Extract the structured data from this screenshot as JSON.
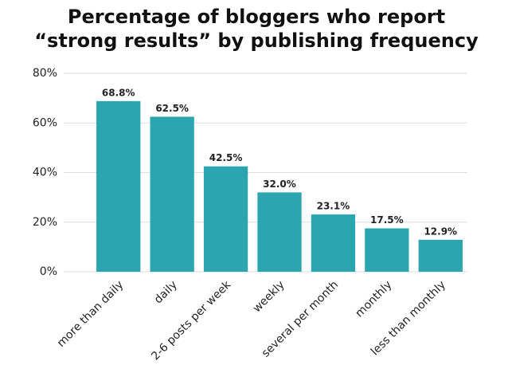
{
  "chart_data": {
    "type": "bar",
    "title": [
      "Percentage of bloggers who report",
      "“strong results” by publishing frequency"
    ],
    "categories": [
      "more than daily",
      "daily",
      "2-6 posts per week",
      "weekly",
      "several per month",
      "monthly",
      "less than monthly"
    ],
    "values": [
      68.8,
      62.5,
      42.5,
      32.0,
      23.1,
      17.5,
      12.9
    ],
    "value_labels": [
      "68.8%",
      "62.5%",
      "42.5%",
      "32.0%",
      "23.1%",
      "17.5%",
      "12.9%"
    ],
    "color": "#2ba6b0",
    "ylim": [
      0,
      80
    ],
    "yticks": [
      {
        "value": 0,
        "label": "0%"
      },
      {
        "value": 20,
        "label": "20%"
      },
      {
        "value": 40,
        "label": "40%"
      },
      {
        "value": 60,
        "label": "60%"
      },
      {
        "value": 80,
        "label": "80%"
      }
    ],
    "grid": true
  }
}
